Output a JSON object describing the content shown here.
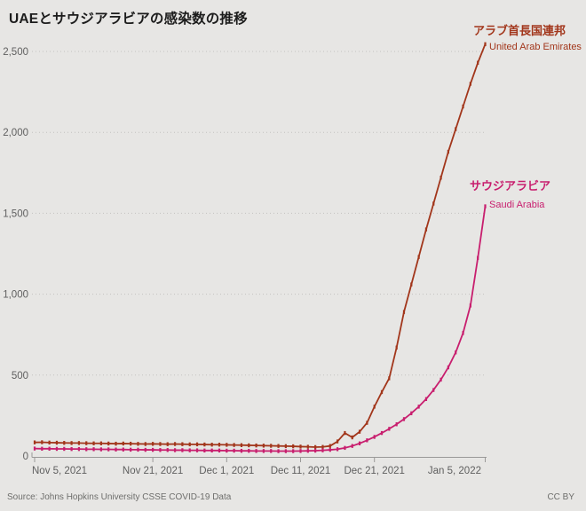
{
  "title": "UAEとサウジアラビアの感染数の推移",
  "footer": {
    "source": "Source: Johns Hopkins University CSSE COVID-19 Data",
    "license": "CC BY"
  },
  "colors": {
    "background": "#e7e6e4",
    "title_text": "#1c1c1c",
    "axis_text": "#5f5f5f",
    "gridline": "#c3c2c0",
    "axis_line": "#9a9998",
    "uae": "#a2361b",
    "saudi": "#c81e6e"
  },
  "chart_data": {
    "type": "line",
    "title": "UAEとサウジアラビアの感染数の推移",
    "xlabel": "",
    "ylabel": "",
    "ylim": [
      0,
      2500
    ],
    "grid": "horizontal-dotted",
    "legend_position": "end-of-line-labels",
    "x": [
      "2021-11-05",
      "2021-11-06",
      "2021-11-07",
      "2021-11-08",
      "2021-11-09",
      "2021-11-10",
      "2021-11-11",
      "2021-11-12",
      "2021-11-13",
      "2021-11-14",
      "2021-11-15",
      "2021-11-16",
      "2021-11-17",
      "2021-11-18",
      "2021-11-19",
      "2021-11-20",
      "2021-11-21",
      "2021-11-22",
      "2021-11-23",
      "2021-11-24",
      "2021-11-25",
      "2021-11-26",
      "2021-11-27",
      "2021-11-28",
      "2021-11-29",
      "2021-11-30",
      "2021-12-01",
      "2021-12-02",
      "2021-12-03",
      "2021-12-04",
      "2021-12-05",
      "2021-12-06",
      "2021-12-07",
      "2021-12-08",
      "2021-12-09",
      "2021-12-10",
      "2021-12-11",
      "2021-12-12",
      "2021-12-13",
      "2021-12-14",
      "2021-12-15",
      "2021-12-16",
      "2021-12-17",
      "2021-12-18",
      "2021-12-19",
      "2021-12-20",
      "2021-12-21",
      "2021-12-22",
      "2021-12-23",
      "2021-12-24",
      "2021-12-25",
      "2021-12-26",
      "2021-12-27",
      "2021-12-28",
      "2021-12-29",
      "2021-12-30",
      "2021-12-31",
      "2022-01-01",
      "2022-01-02",
      "2022-01-03",
      "2022-01-04",
      "2022-01-05"
    ],
    "x_ticks": [
      {
        "index": 0,
        "label": "Nov 5, 2021",
        "align": "start"
      },
      {
        "index": 16,
        "label": "Nov 21, 2021",
        "align": "middle"
      },
      {
        "index": 26,
        "label": "Dec 1, 2021",
        "align": "middle"
      },
      {
        "index": 36,
        "label": "Dec 11, 2021",
        "align": "middle"
      },
      {
        "index": 46,
        "label": "Dec 21, 2021",
        "align": "middle"
      },
      {
        "index": 61,
        "label": "Jan 5, 2022",
        "align": "end"
      }
    ],
    "y_ticks": [
      {
        "value": 0,
        "label": "0"
      },
      {
        "value": 500,
        "label": "500"
      },
      {
        "value": 1000,
        "label": "1,000"
      },
      {
        "value": 1500,
        "label": "1,500"
      },
      {
        "value": 2000,
        "label": "2,000"
      },
      {
        "value": 2500,
        "label": "2,500"
      }
    ],
    "series": [
      {
        "name": "United Arab Emirates",
        "name_ja": "アラブ首長国連邦",
        "color": "#a2361b",
        "values": [
          84,
          85,
          83,
          82,
          81,
          80,
          80,
          79,
          78,
          78,
          77,
          76,
          77,
          76,
          75,
          74,
          75,
          74,
          73,
          74,
          73,
          72,
          72,
          71,
          70,
          70,
          69,
          68,
          67,
          66,
          65,
          64,
          63,
          62,
          61,
          60,
          58,
          57,
          55,
          56,
          62,
          90,
          142,
          115,
          150,
          205,
          305,
          395,
          480,
          670,
          890,
          1060,
          1230,
          1400,
          1560,
          1720,
          1880,
          2020,
          2160,
          2300,
          2430,
          2545
        ]
      },
      {
        "name": "Saudi Arabia",
        "name_ja": "サウジアラビア",
        "color": "#c81e6e",
        "values": [
          46,
          45,
          45,
          44,
          44,
          43,
          43,
          42,
          42,
          41,
          41,
          40,
          40,
          39,
          39,
          38,
          38,
          37,
          37,
          36,
          36,
          35,
          35,
          34,
          34,
          34,
          33,
          33,
          32,
          32,
          31,
          31,
          31,
          30,
          30,
          30,
          31,
          32,
          33,
          35,
          38,
          42,
          50,
          62,
          78,
          97,
          118,
          142,
          168,
          196,
          228,
          264,
          305,
          352,
          408,
          472,
          548,
          640,
          760,
          930,
          1224,
          1543
        ]
      }
    ]
  }
}
